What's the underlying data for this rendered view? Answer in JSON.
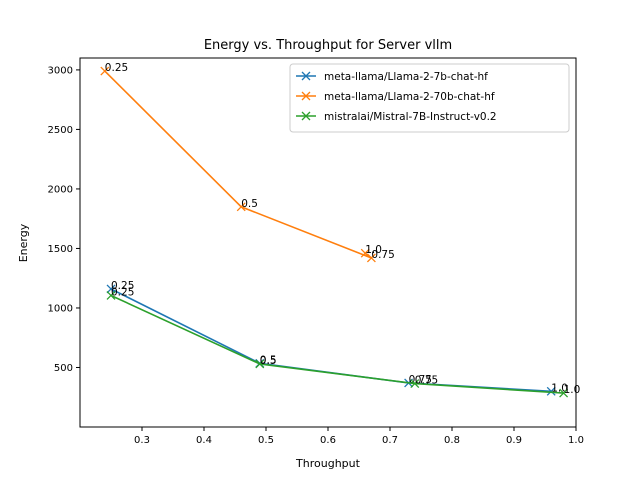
{
  "chart_data": {
    "type": "line",
    "title": "Energy vs. Throughput for Server vllm",
    "xlabel": "Throughput",
    "ylabel": "Energy",
    "xlim": [
      0.2,
      1.0
    ],
    "ylim": [
      0,
      3100
    ],
    "xticks": [
      "0.3",
      "0.4",
      "0.5",
      "0.6",
      "0.7",
      "0.8",
      "0.9",
      "1.0"
    ],
    "yticks": [
      "500",
      "1000",
      "1500",
      "2000",
      "2500",
      "3000"
    ],
    "legend_position": "top-right",
    "marker": "x",
    "series": [
      {
        "name": "meta-llama/Llama-2-7b-chat-hf",
        "color": "#1f77b4",
        "points": [
          {
            "x": 0.25,
            "y": 1160,
            "label": "0.25"
          },
          {
            "x": 0.49,
            "y": 535,
            "label": "0.5"
          },
          {
            "x": 0.73,
            "y": 370,
            "label": "0.75"
          },
          {
            "x": 0.96,
            "y": 300,
            "label": "1.0"
          }
        ]
      },
      {
        "name": "meta-llama/Llama-2-70b-chat-hf",
        "color": "#ff7f0e",
        "points": [
          {
            "x": 0.24,
            "y": 2990,
            "label": "0.25"
          },
          {
            "x": 0.46,
            "y": 1850,
            "label": "0.5"
          },
          {
            "x": 0.67,
            "y": 1420,
            "label": "0.75"
          },
          {
            "x": 0.66,
            "y": 1460,
            "label": "1.0"
          }
        ]
      },
      {
        "name": "mistralai/Mistral-7B-Instruct-v0.2",
        "color": "#2ca02c",
        "points": [
          {
            "x": 0.25,
            "y": 1105,
            "label": "0.25"
          },
          {
            "x": 0.49,
            "y": 530,
            "label": "0.5"
          },
          {
            "x": 0.74,
            "y": 365,
            "label": "0.75"
          },
          {
            "x": 0.98,
            "y": 285,
            "label": "1.0"
          }
        ]
      }
    ]
  }
}
